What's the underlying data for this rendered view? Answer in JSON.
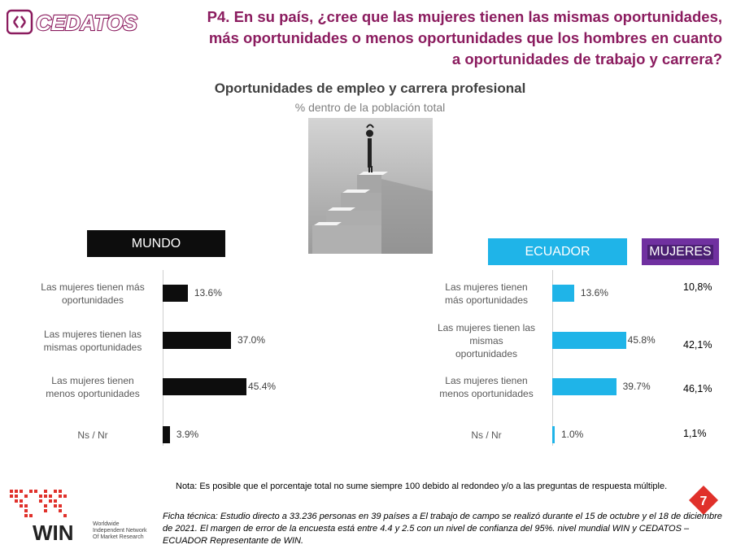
{
  "logo": {
    "text": "CEDATOS"
  },
  "question": {
    "lines": [
      "P4. En su país, ¿cree que las mujeres tienen las mismas oportunidades,",
      "más oportunidades o menos oportunidades que los hombres en cuanto",
      "a oportunidades de trabajo y carrera?"
    ]
  },
  "colors": {
    "question": "#8b1c5f",
    "mundo": "#0d0d0d",
    "ecuador": "#1fb4e8",
    "mujeres": "#7030a0"
  },
  "mujeres": {
    "header": "MUJERES",
    "values": [
      "10,8%",
      "42,1%",
      "46,1%",
      "1,1%"
    ]
  },
  "footer": {
    "nota": "Nota: Es posible que el porcentaje total no sume siempre 100 debido al redondeo y/o a las preguntas de respuesta múltiple.",
    "ficha": "Ficha técnica: Estudio directo a 33.236 personas en 39 países a El trabajo de campo se realizó durante el 15 de octubre y el 18 de diciembre de 2021. El margen de error de la encuesta está entre 4.4 y 2.5 con un nivel de confianza del 95%. nivel mundial WIN y CEDATOS – ECUADOR Representante de WIN.",
    "page_number": "7",
    "win_logo": {
      "word": "WIN",
      "lines": [
        "Worldwide",
        "Independent Network",
        "Of Market Research"
      ]
    }
  },
  "chart_data": [
    {
      "type": "bar",
      "orientation": "horizontal",
      "title": "Oportunidades de empleo y carrera profesional",
      "subtitle": "% dentro de la población total",
      "header": "MUNDO",
      "categories": [
        [
          "Las mujeres tienen más",
          "oportunidades"
        ],
        [
          "Las mujeres tienen las",
          "mismas oportunidades"
        ],
        [
          "Las mujeres tienen",
          "menos oportunidades"
        ],
        [
          "Ns / Nr"
        ]
      ],
      "values": [
        13.6,
        37.0,
        45.4,
        3.9
      ],
      "labels": [
        "13.6%",
        "37.0%",
        "45.4%",
        "3.9%"
      ],
      "color": "#0d0d0d"
    },
    {
      "type": "bar",
      "orientation": "horizontal",
      "header": "ECUADOR",
      "categories": [
        [
          "Las mujeres tienen",
          "más oportunidades"
        ],
        [
          "Las mujeres tienen las",
          "mismas",
          "oportunidades"
        ],
        [
          "Las mujeres tienen",
          "menos oportunidades"
        ],
        [
          "Ns / Nr"
        ]
      ],
      "values": [
        13.6,
        45.8,
        39.7,
        1.0
      ],
      "labels": [
        "13.6%",
        "45.8%",
        "39.7%",
        "1.0%"
      ],
      "color": "#1fb4e8"
    }
  ]
}
